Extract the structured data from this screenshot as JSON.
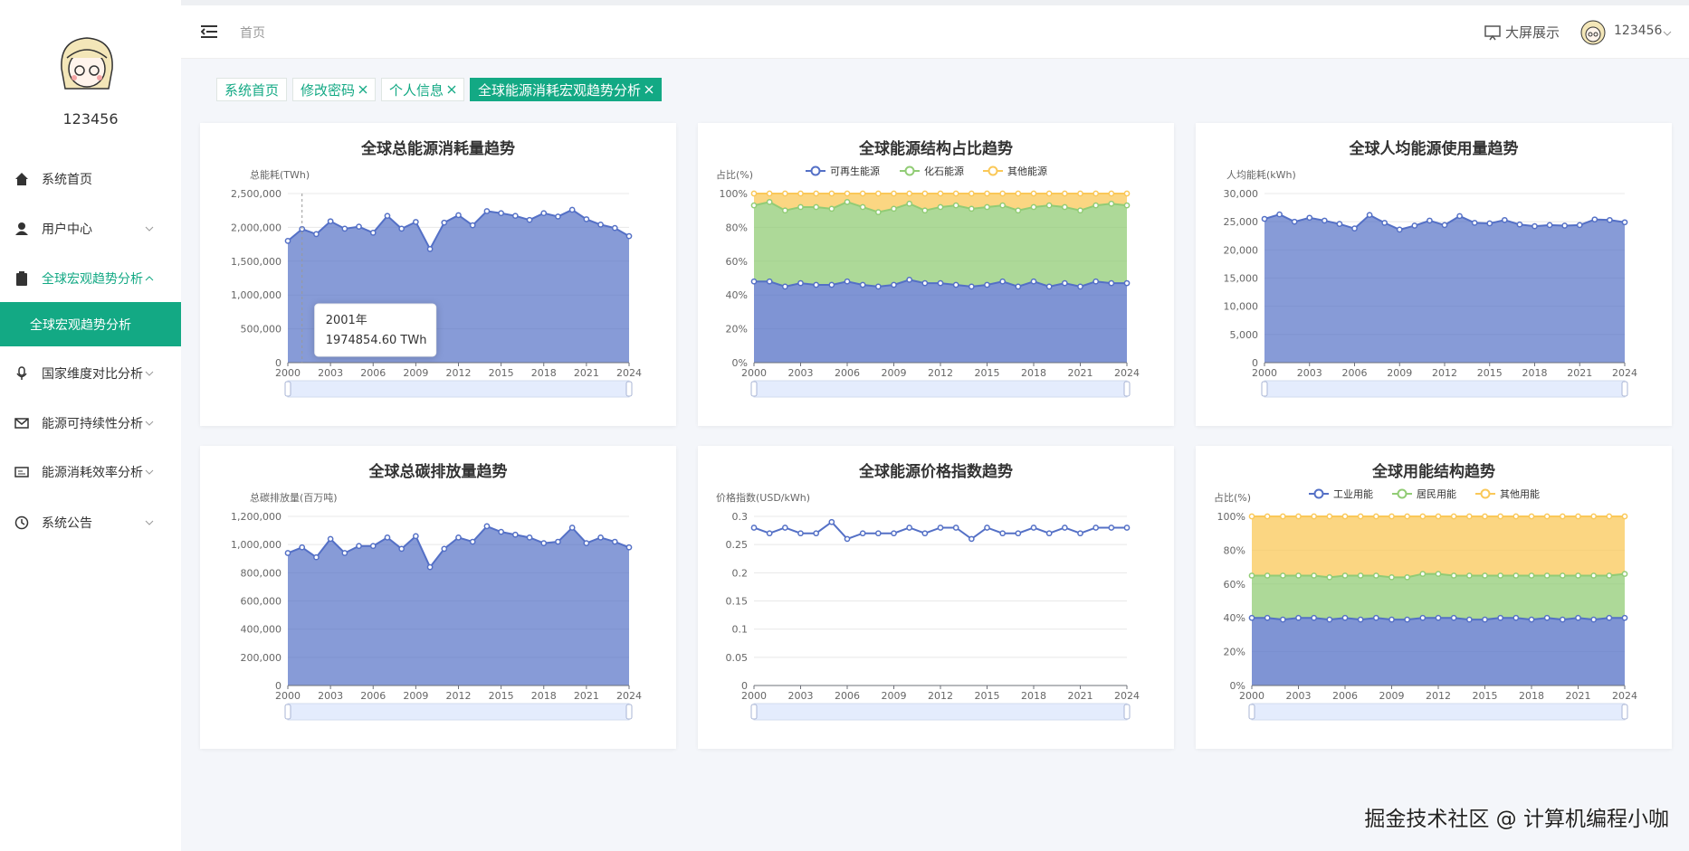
{
  "sidebar": {
    "username": "123456",
    "menu": [
      {
        "label": "系统首页"
      },
      {
        "label": "用户中心"
      },
      {
        "label": "全球宏观趋势分析",
        "children": [
          "全球宏观趋势分析"
        ]
      },
      {
        "label": "国家维度对比分析"
      },
      {
        "label": "能源可持续性分析"
      },
      {
        "label": "能源消耗效率分析"
      },
      {
        "label": "系统公告"
      }
    ]
  },
  "header": {
    "breadcrumb": "首页",
    "bigscreen": "大屏展示",
    "user": "123456"
  },
  "tabs": [
    "系统首页",
    "修改密码",
    "个人信息",
    "全球能源消耗宏观趋势分析"
  ],
  "watermark": "掘金技术社区 @ 计算机编程小咖",
  "chart_data": [
    {
      "type": "area",
      "title": "全球总能源消耗量趋势",
      "y_label": "总能耗(TWh)",
      "color": "#5470c6",
      "grid": true,
      "x": [
        2000,
        2001,
        2002,
        2003,
        2004,
        2005,
        2006,
        2007,
        2008,
        2009,
        2010,
        2011,
        2012,
        2013,
        2014,
        2015,
        2016,
        2017,
        2018,
        2019,
        2020,
        2021,
        2022,
        2023,
        2024
      ],
      "values": [
        1800000,
        1974854.6,
        1900000,
        2090000,
        1980000,
        2010000,
        1920000,
        2170000,
        1980000,
        2080000,
        1680000,
        2070000,
        2180000,
        2030000,
        2240000,
        2210000,
        2170000,
        2110000,
        2210000,
        2160000,
        2260000,
        2120000,
        2040000,
        1990000,
        1870000
      ],
      "xlim": [
        2000,
        2024
      ],
      "xticks": [
        2000,
        2003,
        2006,
        2009,
        2012,
        2015,
        2018,
        2021,
        2024
      ],
      "ylim": [
        0,
        2500000
      ],
      "yticks": [
        0,
        {
          "value": 500000,
          "label": "500,000"
        },
        {
          "value": 1000000,
          "label": "1,000,000"
        },
        {
          "value": 1500000,
          "label": "1,500,000"
        },
        {
          "value": 2000000,
          "label": "2,000,000"
        },
        {
          "value": 2500000,
          "label": "2,500,000"
        }
      ],
      "tooltip": {
        "title": "2001年",
        "text": "1974854.60 TWh"
      }
    },
    {
      "type": "area",
      "stacked": true,
      "title": "全球能源结构占比趋势",
      "y_label": "占比(%)",
      "grid": true,
      "x": [
        2000,
        2001,
        2002,
        2003,
        2004,
        2005,
        2006,
        2007,
        2008,
        2009,
        2010,
        2011,
        2012,
        2013,
        2014,
        2015,
        2016,
        2017,
        2018,
        2019,
        2020,
        2021,
        2022,
        2023,
        2024
      ],
      "series": [
        {
          "name": "可再生能源",
          "color": "#5470c6",
          "values": [
            48,
            48,
            45,
            47,
            46,
            46,
            48,
            46,
            45,
            46,
            49,
            47,
            47,
            46,
            45,
            46,
            48,
            45,
            48,
            45,
            47,
            45,
            48,
            47,
            47
          ]
        },
        {
          "name": "化石能源",
          "color": "#91cc75",
          "values": [
            45,
            47,
            45,
            45,
            46,
            45,
            47,
            46,
            44,
            45,
            45,
            43,
            45,
            47,
            46,
            46,
            45,
            45,
            44,
            48,
            45,
            45,
            45,
            47,
            46
          ]
        },
        {
          "name": "其他能源",
          "color": "#fac858",
          "values": [
            7,
            5,
            10,
            8,
            8,
            9,
            5,
            8,
            11,
            9,
            6,
            10,
            8,
            7,
            9,
            8,
            7,
            10,
            8,
            7,
            8,
            10,
            7,
            6,
            7
          ]
        }
      ],
      "xlim": [
        2000,
        2024
      ],
      "xticks": [
        2000,
        2003,
        2006,
        2009,
        2012,
        2015,
        2018,
        2021,
        2024
      ],
      "ylim": [
        0,
        100
      ],
      "yticks": [
        {
          "value": 0,
          "label": "0%"
        },
        {
          "value": 20,
          "label": "20%"
        },
        {
          "value": 40,
          "label": "40%"
        },
        {
          "value": 60,
          "label": "60%"
        },
        {
          "value": 80,
          "label": "80%"
        },
        {
          "value": 100,
          "label": "100%"
        }
      ]
    },
    {
      "type": "area",
      "title": "全球人均能源使用量趋势",
      "y_label": "人均能耗(kWh)",
      "color": "#5470c6",
      "grid": true,
      "x": [
        2000,
        2001,
        2002,
        2003,
        2004,
        2005,
        2006,
        2007,
        2008,
        2009,
        2010,
        2011,
        2012,
        2013,
        2014,
        2015,
        2016,
        2017,
        2018,
        2019,
        2020,
        2021,
        2022,
        2023,
        2024
      ],
      "values": [
        25500,
        26300,
        25000,
        25700,
        25200,
        24600,
        23800,
        26200,
        24800,
        23600,
        24300,
        25200,
        24400,
        26000,
        24800,
        24700,
        25300,
        24500,
        24200,
        24400,
        24300,
        24400,
        25400,
        25300,
        24900
      ],
      "xlim": [
        2000,
        2024
      ],
      "xticks": [
        2000,
        2003,
        2006,
        2009,
        2012,
        2015,
        2018,
        2021,
        2024
      ],
      "ylim": [
        0,
        30000
      ],
      "yticks": [
        0,
        {
          "value": 5000,
          "label": "5,000"
        },
        {
          "value": 10000,
          "label": "10,000"
        },
        {
          "value": 15000,
          "label": "15,000"
        },
        {
          "value": 20000,
          "label": "20,000"
        },
        {
          "value": 25000,
          "label": "25,000"
        },
        {
          "value": 30000,
          "label": "30,000"
        }
      ]
    },
    {
      "type": "area",
      "title": "全球总碳排放量趋势",
      "y_label": "总碳排放量(百万吨)",
      "color": "#5470c6",
      "grid": true,
      "x": [
        2000,
        2001,
        2002,
        2003,
        2004,
        2005,
        2006,
        2007,
        2008,
        2009,
        2010,
        2011,
        2012,
        2013,
        2014,
        2015,
        2016,
        2017,
        2018,
        2019,
        2020,
        2021,
        2022,
        2023,
        2024
      ],
      "values": [
        940000,
        980000,
        910000,
        1040000,
        940000,
        990000,
        990000,
        1050000,
        970000,
        1060000,
        840000,
        970000,
        1050000,
        1020000,
        1130000,
        1090000,
        1070000,
        1050000,
        1010000,
        1020000,
        1120000,
        1010000,
        1050000,
        1020000,
        980000
      ],
      "xlim": [
        2000,
        2024
      ],
      "xticks": [
        2000,
        2003,
        2006,
        2009,
        2012,
        2015,
        2018,
        2021,
        2024
      ],
      "ylim": [
        0,
        1200000
      ],
      "yticks": [
        0,
        {
          "value": 200000,
          "label": "200,000"
        },
        {
          "value": 400000,
          "label": "400,000"
        },
        {
          "value": 600000,
          "label": "600,000"
        },
        {
          "value": 800000,
          "label": "800,000"
        },
        {
          "value": 1000000,
          "label": "1,000,000"
        },
        {
          "value": 1200000,
          "label": "1,200,000"
        }
      ]
    },
    {
      "type": "line",
      "title": "全球能源价格指数趋势",
      "y_label": "价格指数(USD/kWh)",
      "color": "#5470c6",
      "grid": true,
      "x": [
        2000,
        2001,
        2002,
        2003,
        2004,
        2005,
        2006,
        2007,
        2008,
        2009,
        2010,
        2011,
        2012,
        2013,
        2014,
        2015,
        2016,
        2017,
        2018,
        2019,
        2020,
        2021,
        2022,
        2023,
        2024
      ],
      "values": [
        0.28,
        0.27,
        0.28,
        0.27,
        0.27,
        0.29,
        0.26,
        0.27,
        0.27,
        0.27,
        0.28,
        0.27,
        0.28,
        0.28,
        0.26,
        0.28,
        0.27,
        0.27,
        0.28,
        0.27,
        0.28,
        0.27,
        0.28,
        0.28,
        0.28
      ],
      "xlim": [
        2000,
        2024
      ],
      "xticks": [
        2000,
        2003,
        2006,
        2009,
        2012,
        2015,
        2018,
        2021,
        2024
      ],
      "ylim": [
        0,
        0.3
      ],
      "yticks": [
        0,
        0.05,
        0.1,
        0.15,
        0.2,
        0.25,
        0.3
      ]
    },
    {
      "type": "area",
      "stacked": true,
      "title": "全球用能结构趋势",
      "y_label": "占比(%)",
      "grid": true,
      "x": [
        2000,
        2001,
        2002,
        2003,
        2004,
        2005,
        2006,
        2007,
        2008,
        2009,
        2010,
        2011,
        2012,
        2013,
        2014,
        2015,
        2016,
        2017,
        2018,
        2019,
        2020,
        2021,
        2022,
        2023,
        2024
      ],
      "series": [
        {
          "name": "工业用能",
          "color": "#5470c6",
          "values": [
            40,
            40,
            39,
            40,
            40,
            39,
            40,
            39,
            40,
            39,
            39,
            40,
            40,
            40,
            39,
            39,
            40,
            40,
            39,
            40,
            39,
            40,
            39,
            40,
            40
          ]
        },
        {
          "name": "居民用能",
          "color": "#91cc75",
          "values": [
            25,
            25,
            26,
            25,
            25,
            25,
            25,
            26,
            25,
            25,
            25,
            26,
            26,
            25,
            26,
            26,
            25,
            25,
            26,
            25,
            26,
            25,
            26,
            25,
            26
          ]
        },
        {
          "name": "其他用能",
          "color": "#fac858",
          "values": [
            35,
            35,
            35,
            35,
            35,
            36,
            35,
            35,
            35,
            36,
            36,
            34,
            34,
            35,
            35,
            35,
            35,
            35,
            35,
            35,
            35,
            35,
            35,
            35,
            34
          ]
        }
      ],
      "xlim": [
        2000,
        2024
      ],
      "xticks": [
        2000,
        2003,
        2006,
        2009,
        2012,
        2015,
        2018,
        2021,
        2024
      ],
      "ylim": [
        0,
        100
      ],
      "yticks": [
        {
          "value": 0,
          "label": "0%"
        },
        {
          "value": 20,
          "label": "20%"
        },
        {
          "value": 40,
          "label": "40%"
        },
        {
          "value": 60,
          "label": "60%"
        },
        {
          "value": 80,
          "label": "80%"
        },
        {
          "value": 100,
          "label": "100%"
        }
      ]
    }
  ]
}
